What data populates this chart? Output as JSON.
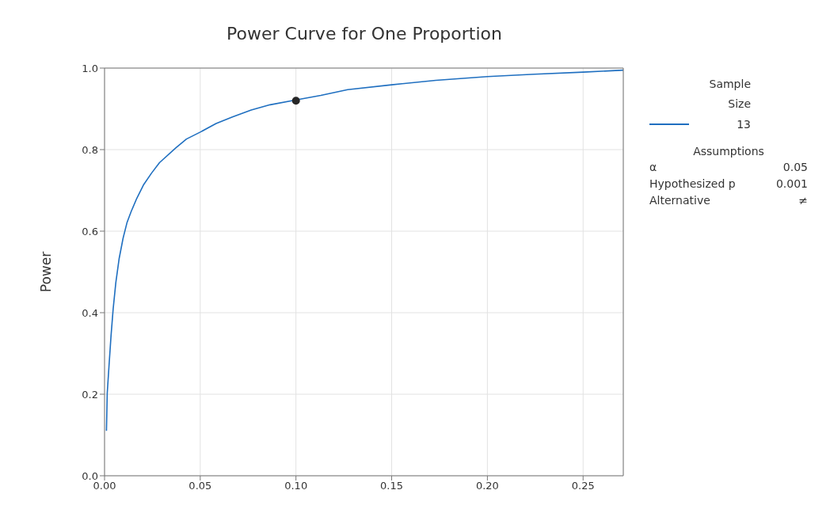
{
  "chart_data": {
    "type": "line",
    "title": "Power Curve for One Proportion",
    "ylabel": "Power",
    "legend_title": "Sample Size",
    "legend": "right",
    "xlim": [
      0,
      0.271
    ],
    "ylim": [
      0,
      1
    ],
    "xticks": [
      {
        "value": 0,
        "label": "0.00"
      },
      {
        "value": 0.05,
        "label": "0.05"
      },
      {
        "value": 0.1,
        "label": "0.10"
      },
      {
        "value": 0.15,
        "label": "0.15"
      },
      {
        "value": 0.2,
        "label": "0.20"
      },
      {
        "value": 0.25,
        "label": "0.25"
      }
    ],
    "yticks": [
      {
        "value": 0,
        "label": "0.0"
      },
      {
        "value": 0.2,
        "label": "0.2"
      },
      {
        "value": 0.4,
        "label": "0.4"
      },
      {
        "value": 0.6,
        "label": "0.6"
      },
      {
        "value": 0.8,
        "label": "0.8"
      },
      {
        "value": 1,
        "label": "1.0"
      }
    ],
    "grid": true,
    "line_style": "solid",
    "series": [
      {
        "name": "13",
        "type": "line",
        "color": "#1f6fc0",
        "marker": "none",
        "x": [
          0.001,
          0.0014,
          0.0023,
          0.0034,
          0.0045,
          0.0059,
          0.0076,
          0.0097,
          0.0118,
          0.0139,
          0.0168,
          0.0203,
          0.0245,
          0.0287,
          0.0372,
          0.0428,
          0.05,
          0.0583,
          0.0668,
          0.0766,
          0.0865,
          0.1,
          0.113,
          0.127,
          0.15,
          0.173,
          0.2,
          0.2246,
          0.25,
          0.271
        ],
        "values": [
          0.11,
          0.202,
          0.267,
          0.344,
          0.409,
          0.474,
          0.532,
          0.583,
          0.622,
          0.648,
          0.68,
          0.713,
          0.742,
          0.768,
          0.804,
          0.826,
          0.843,
          0.864,
          0.88,
          0.897,
          0.91,
          0.922,
          0.933,
          0.947,
          0.959,
          0.97,
          0.979,
          0.985,
          0.99,
          0.995
        ]
      },
      {
        "type": "scatter",
        "color": "#262626",
        "marker": "circle",
        "x": [
          0.1
        ],
        "values": [
          0.92
        ]
      }
    ],
    "annotations": [
      "Assumptions",
      "α",
      "0.05",
      "Hypothesized p",
      "0.001",
      "Alternative",
      "≠"
    ]
  }
}
